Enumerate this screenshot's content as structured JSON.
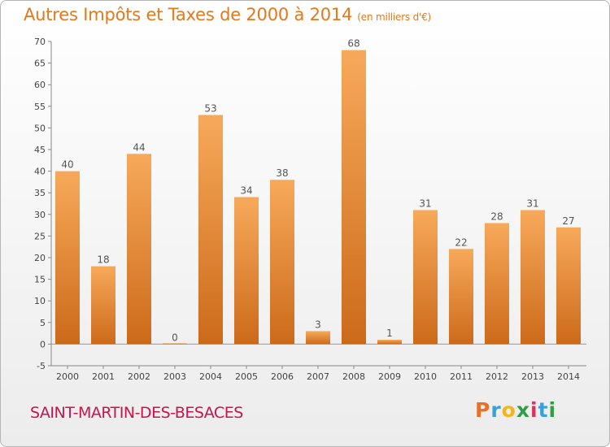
{
  "title": "Autres Impôts et Taxes de 2000 à 2014",
  "unit_note": "(en milliers d'€)",
  "commune": "SAINT-MARTIN-DES-BESACES",
  "logo": {
    "letters": [
      "P",
      "r",
      "o",
      "x",
      "i",
      "t",
      "i"
    ],
    "colors": [
      "#e8702a",
      "#3aa0d8",
      "#f3b51c",
      "#2f9e47",
      "#d6345a",
      "#3aa0d8",
      "#2f9e47"
    ]
  },
  "colors": {
    "bar_light": "#f7a95a",
    "bar_dark": "#cc6a1a",
    "title": "#e2791c",
    "commune": "#c8144e"
  },
  "chart_data": {
    "type": "bar",
    "title": "Autres Impôts et Taxes de 2000 à 2014",
    "ylabel": "",
    "xlabel": "",
    "categories": [
      "2000",
      "2001",
      "2002",
      "2003",
      "2004",
      "2005",
      "2006",
      "2007",
      "2008",
      "2009",
      "2010",
      "2011",
      "2012",
      "2013",
      "2014"
    ],
    "values": [
      40,
      18,
      44,
      0,
      53,
      34,
      38,
      3,
      68,
      1,
      31,
      22,
      28,
      31,
      27
    ],
    "ylim": [
      -5,
      70
    ],
    "yticks": [
      -5,
      0,
      5,
      10,
      15,
      20,
      25,
      30,
      35,
      40,
      45,
      50,
      55,
      60,
      65,
      70
    ],
    "grid": false,
    "data_labels": true
  }
}
